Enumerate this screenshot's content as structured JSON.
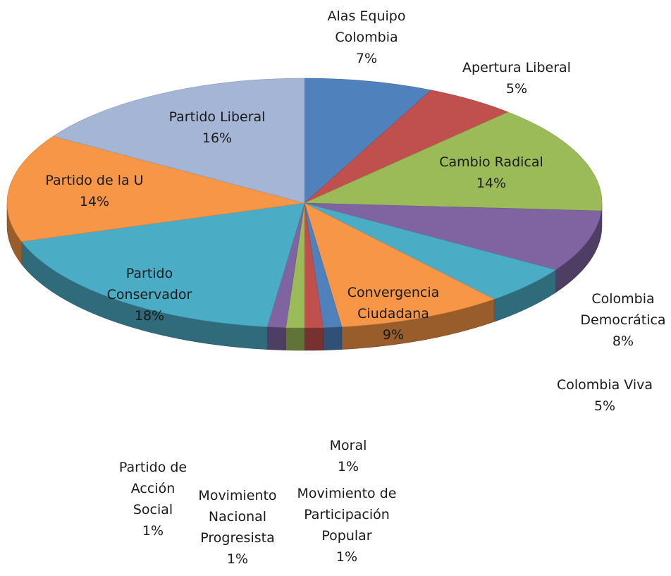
{
  "chart_data": {
    "type": "pie",
    "variant": "3d",
    "slices": [
      {
        "label": "Alas Equipo Colombia",
        "value": 7,
        "pct_text": "7%",
        "color": "#4F81BD"
      },
      {
        "label": "Apertura Liberal",
        "value": 5,
        "pct_text": "5%",
        "color": "#C0504D"
      },
      {
        "label": "Cambio Radical",
        "value": 14,
        "pct_text": "14%",
        "color": "#9BBB59"
      },
      {
        "label": "Colombia Democrática",
        "value": 8,
        "pct_text": "8%",
        "color": "#8064A2"
      },
      {
        "label": "Colombia Viva",
        "value": 5,
        "pct_text": "5%",
        "color": "#4BACC6"
      },
      {
        "label": "Convergencia Ciudadana",
        "value": 9,
        "pct_text": "9%",
        "color": "#F79646"
      },
      {
        "label": "Movimiento de Participación Popular",
        "value": 1,
        "pct_text": "1%",
        "color": "#4F81BD"
      },
      {
        "label": "Moral",
        "value": 1,
        "pct_text": "1%",
        "color": "#C0504D"
      },
      {
        "label": "Movimiento Nacional Progresista",
        "value": 1,
        "pct_text": "1%",
        "color": "#9BBB59"
      },
      {
        "label": "Partido de Acción Social",
        "value": 1,
        "pct_text": "1%",
        "color": "#8064A2"
      },
      {
        "label": "Partido Conservador",
        "value": 18,
        "pct_text": "18%",
        "color": "#4BACC6"
      },
      {
        "label": "Partido de la U",
        "value": 14,
        "pct_text": "14%",
        "color": "#F79646"
      },
      {
        "label": "Partido Liberal",
        "value": 16,
        "pct_text": "16%",
        "color": "#A5B5D6"
      }
    ]
  }
}
